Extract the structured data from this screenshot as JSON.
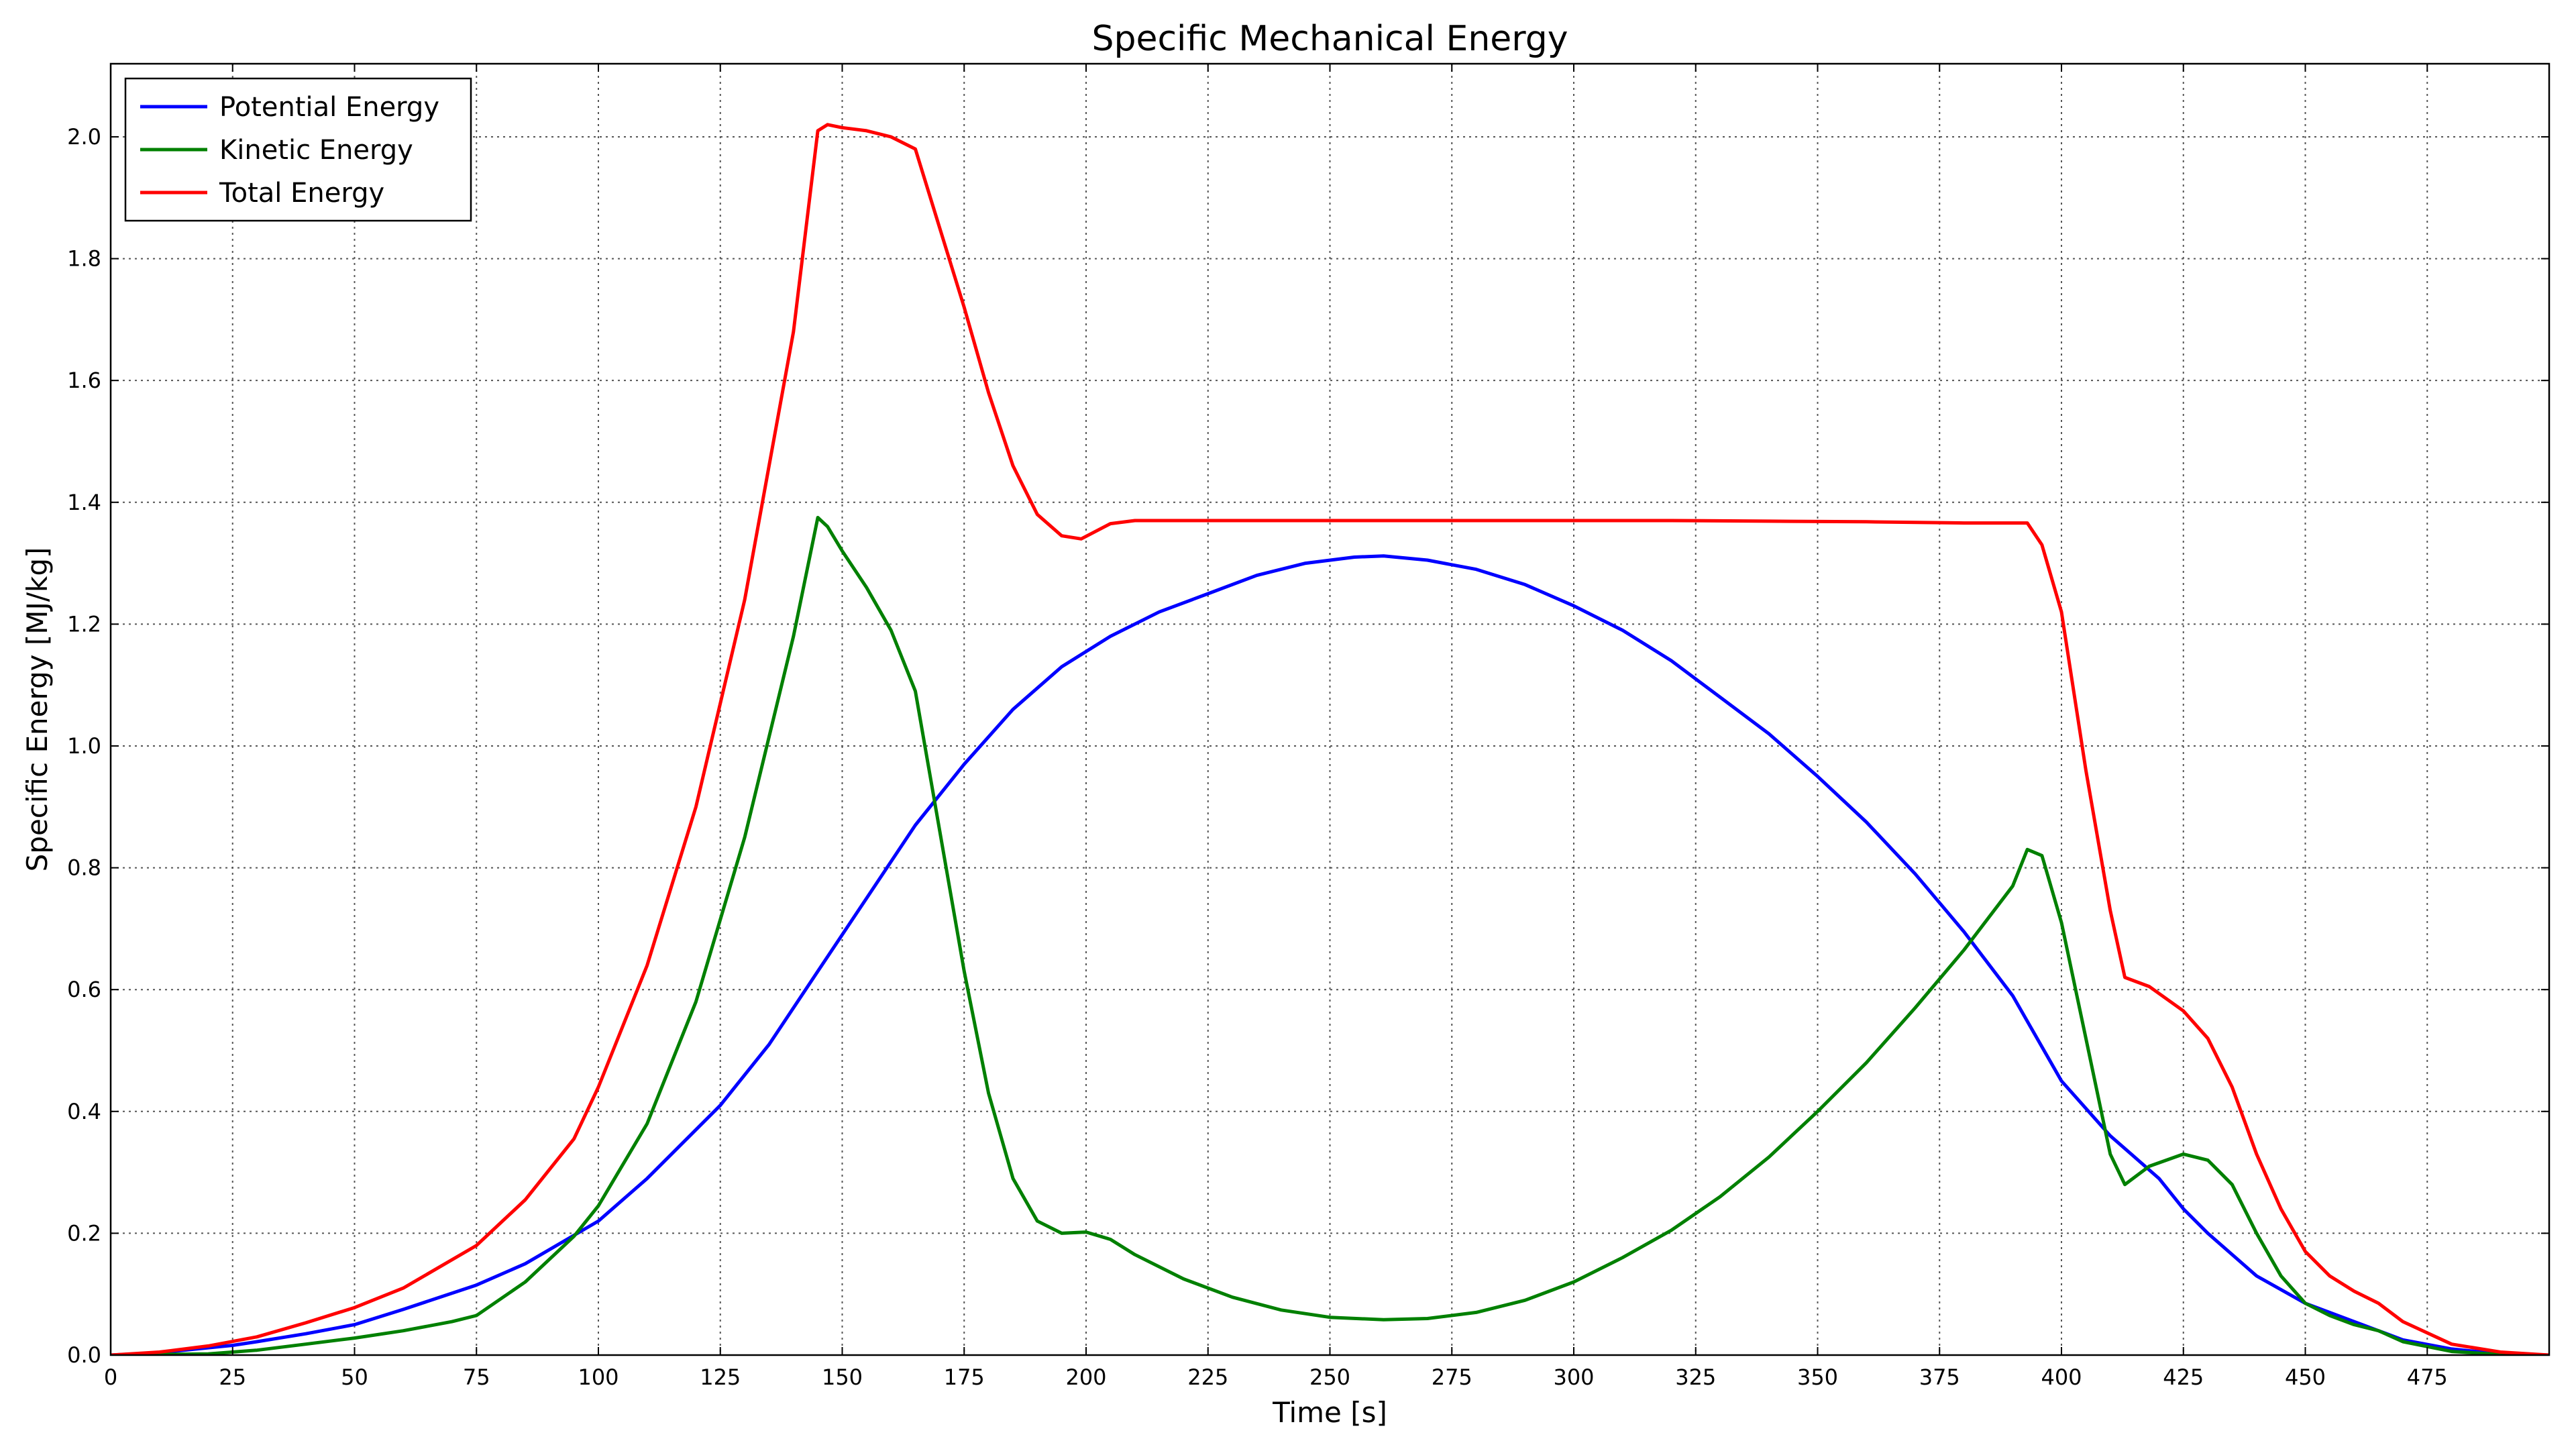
{
  "chart_data": {
    "type": "line",
    "title": "Specific Mechanical Energy",
    "xlabel": "Time [s]",
    "ylabel": "Specific Energy [MJ/kg]",
    "xlim": [
      0,
      500
    ],
    "ylim": [
      0,
      2.12
    ],
    "xticks": [
      0,
      25,
      50,
      75,
      100,
      125,
      150,
      175,
      200,
      225,
      250,
      275,
      300,
      325,
      350,
      375,
      400,
      425,
      450,
      475
    ],
    "yticks": [
      0.0,
      0.2,
      0.4,
      0.6,
      0.8,
      1.0,
      1.2,
      1.4,
      1.6,
      1.8,
      2.0
    ],
    "ytick_labels": [
      "0.0",
      "0.2",
      "0.4",
      "0.6",
      "0.8",
      "1.0",
      "1.2",
      "1.4",
      "1.6",
      "1.8",
      "2.0"
    ],
    "grid": true,
    "grid_style": "dotted",
    "legend_position": "top-left",
    "series": [
      {
        "name": "Potential Energy",
        "color": "#0000ff",
        "x": [
          0,
          10,
          20,
          25,
          30,
          40,
          50,
          60,
          75,
          85,
          100,
          110,
          125,
          135,
          145,
          155,
          165,
          175,
          185,
          195,
          205,
          215,
          225,
          235,
          245,
          255,
          261,
          270,
          280,
          290,
          300,
          310,
          320,
          330,
          340,
          350,
          360,
          370,
          380,
          390,
          400,
          410,
          420,
          425,
          430,
          440,
          450,
          460,
          465,
          470,
          480,
          490,
          500
        ],
        "y": [
          0.0,
          0.004,
          0.012,
          0.016,
          0.022,
          0.035,
          0.05,
          0.075,
          0.115,
          0.15,
          0.22,
          0.29,
          0.41,
          0.51,
          0.63,
          0.75,
          0.87,
          0.97,
          1.06,
          1.13,
          1.18,
          1.22,
          1.25,
          1.28,
          1.3,
          1.31,
          1.312,
          1.305,
          1.29,
          1.265,
          1.23,
          1.19,
          1.14,
          1.08,
          1.02,
          0.95,
          0.875,
          0.79,
          0.695,
          0.59,
          0.45,
          0.36,
          0.29,
          0.24,
          0.2,
          0.13,
          0.085,
          0.055,
          0.04,
          0.025,
          0.01,
          0.002,
          0.0
        ]
      },
      {
        "name": "Kinetic Energy",
        "color": "#008000",
        "x": [
          0,
          20,
          30,
          40,
          50,
          60,
          70,
          75,
          85,
          95,
          100,
          110,
          120,
          130,
          140,
          145,
          147,
          150,
          155,
          160,
          165,
          170,
          175,
          180,
          185,
          190,
          195,
          200,
          205,
          210,
          220,
          230,
          240,
          250,
          261,
          270,
          280,
          290,
          300,
          310,
          320,
          330,
          340,
          350,
          360,
          370,
          380,
          390,
          393,
          396,
          400,
          405,
          410,
          413,
          418,
          425,
          430,
          435,
          440,
          445,
          450,
          455,
          460,
          465,
          470,
          480,
          490,
          500
        ],
        "y": [
          0.0,
          0.002,
          0.008,
          0.018,
          0.028,
          0.04,
          0.055,
          0.065,
          0.12,
          0.195,
          0.245,
          0.38,
          0.58,
          0.85,
          1.18,
          1.375,
          1.36,
          1.32,
          1.26,
          1.19,
          1.09,
          0.86,
          0.63,
          0.43,
          0.29,
          0.22,
          0.2,
          0.202,
          0.19,
          0.165,
          0.125,
          0.095,
          0.074,
          0.062,
          0.058,
          0.06,
          0.07,
          0.09,
          0.12,
          0.16,
          0.205,
          0.26,
          0.325,
          0.4,
          0.48,
          0.57,
          0.665,
          0.77,
          0.83,
          0.82,
          0.71,
          0.52,
          0.33,
          0.28,
          0.31,
          0.33,
          0.32,
          0.28,
          0.2,
          0.13,
          0.085,
          0.065,
          0.05,
          0.04,
          0.022,
          0.006,
          0.001,
          0.0
        ]
      },
      {
        "name": "Total Energy",
        "color": "#ff0000",
        "x": [
          0,
          10,
          20,
          30,
          40,
          50,
          60,
          75,
          85,
          95,
          100,
          110,
          120,
          130,
          140,
          145,
          147,
          150,
          155,
          160,
          165,
          170,
          175,
          180,
          185,
          190,
          195,
          199,
          205,
          210,
          220,
          240,
          260,
          280,
          300,
          320,
          340,
          360,
          380,
          390,
          393,
          396,
          400,
          405,
          410,
          413,
          418,
          425,
          430,
          435,
          440,
          445,
          450,
          455,
          460,
          465,
          470,
          480,
          490,
          500
        ],
        "y": [
          0.0,
          0.005,
          0.015,
          0.03,
          0.053,
          0.078,
          0.11,
          0.18,
          0.255,
          0.355,
          0.44,
          0.64,
          0.9,
          1.24,
          1.68,
          2.01,
          2.02,
          2.015,
          2.01,
          2.0,
          1.98,
          1.85,
          1.72,
          1.58,
          1.46,
          1.38,
          1.345,
          1.34,
          1.365,
          1.37,
          1.37,
          1.37,
          1.37,
          1.37,
          1.37,
          1.37,
          1.369,
          1.368,
          1.366,
          1.366,
          1.366,
          1.33,
          1.22,
          0.96,
          0.73,
          0.62,
          0.605,
          0.565,
          0.52,
          0.44,
          0.33,
          0.24,
          0.17,
          0.13,
          0.105,
          0.085,
          0.055,
          0.018,
          0.005,
          0.0
        ]
      }
    ]
  }
}
